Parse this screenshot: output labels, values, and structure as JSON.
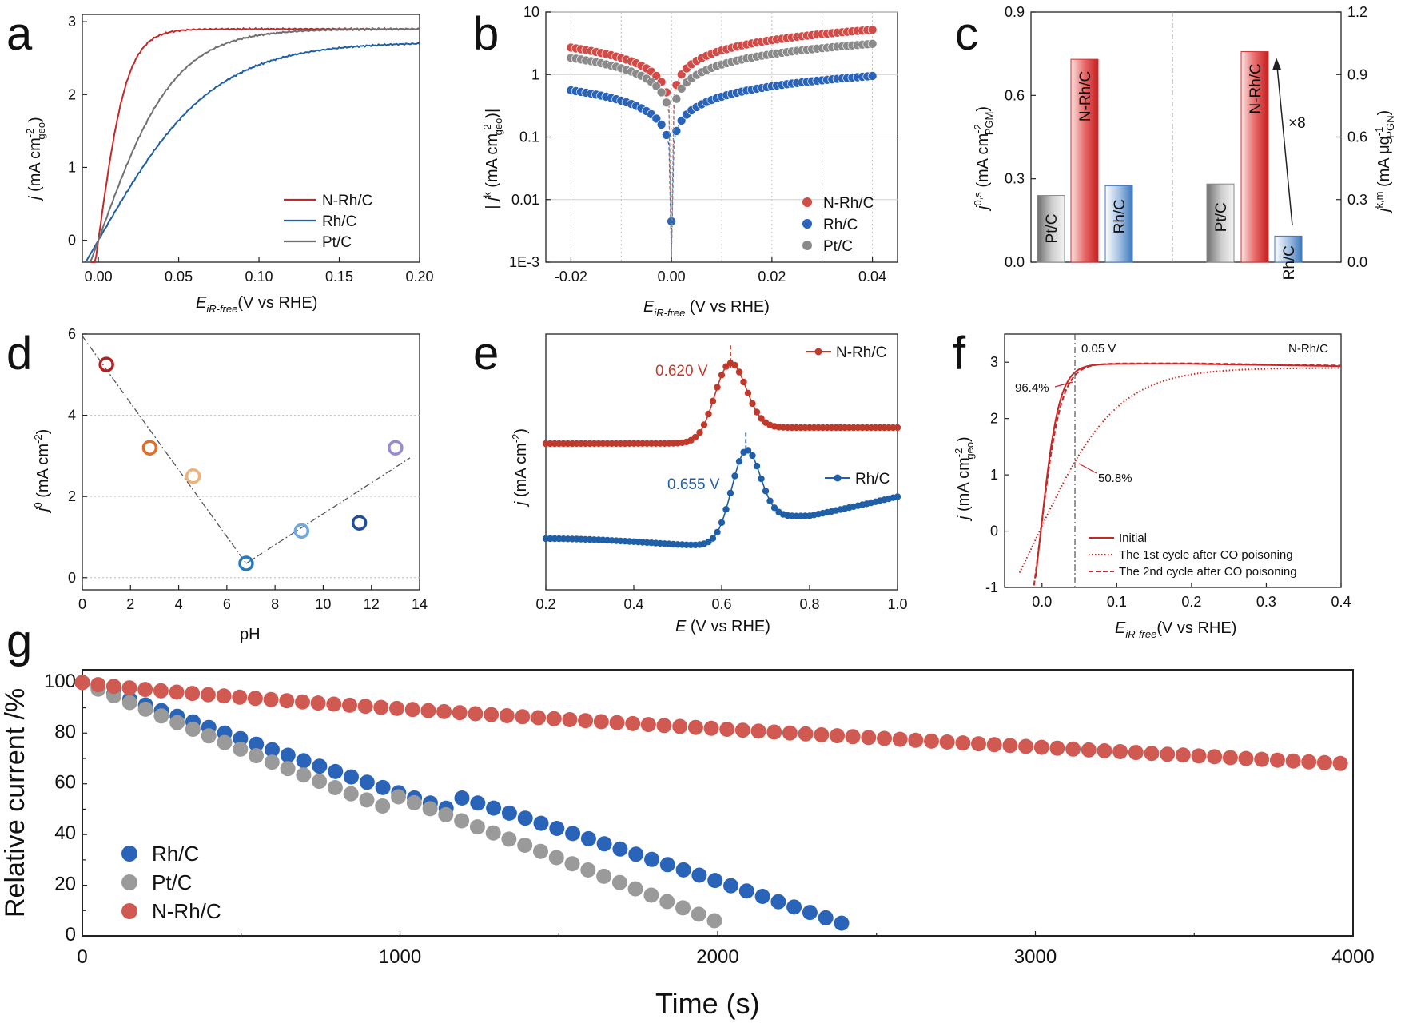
{
  "panels": {
    "a": {
      "letter": "a",
      "chart_data": {
        "type": "line",
        "ylabel": "j (mA cm-2geo)",
        "ylabel_parts": {
          "sym": "j",
          "main": " (mA cm",
          "sup": "-2",
          "sub": "geo",
          "end": ")"
        },
        "xlabel_parts": {
          "sym": "E",
          "sub": "iR-free",
          "end": "(V vs RHE)"
        },
        "xlim": [
          -0.01,
          0.2
        ],
        "ylim": [
          -0.3,
          3.1
        ],
        "xticks": [
          "0.00",
          "0.05",
          "0.10",
          "0.15",
          "0.20"
        ],
        "yticks": [
          "0",
          "1",
          "2",
          "3"
        ],
        "legend_position": "bottom-right",
        "series": [
          {
            "name": "N-Rh/C",
            "color": "#c62828",
            "jmax": 2.9,
            "k": 55
          },
          {
            "name": "Rh/C",
            "color": "#1f5fa8",
            "jmax": 2.72,
            "k": 14
          },
          {
            "name": "Pt/C",
            "color": "#707070",
            "jmax": 2.9,
            "k": 21
          }
        ]
      }
    },
    "b": {
      "letter": "b",
      "chart_data": {
        "type": "scatter",
        "yscale": "log",
        "ylabel_parts": {
          "main": "| j",
          "sup": "k",
          "mid": " (mA cm",
          "sup2": "-2",
          "sub": "geo",
          "end": ")|"
        },
        "xlabel_parts": {
          "sym": "E",
          "sub": "iR-free",
          "end": " (V vs RHE)"
        },
        "xlim": [
          -0.025,
          0.045
        ],
        "ylim": [
          0.001,
          10
        ],
        "xticks": [
          "-0.02",
          "0.00",
          "0.02",
          "0.04"
        ],
        "yticks": [
          "1E-3",
          "0.01",
          "0.1",
          "1",
          "10"
        ],
        "legend_position": "bottom-right",
        "series": [
          {
            "name": "N-Rh/C",
            "color": "#d24b46",
            "j_neg": 2.7,
            "j_pos": 5.2
          },
          {
            "name": "Rh/C",
            "color": "#2a64b8",
            "j_neg": 0.56,
            "j_pos": 0.95
          },
          {
            "name": "Pt/C",
            "color": "#8a8a8a",
            "j_neg": 1.85,
            "j_pos": 3.1
          }
        ]
      }
    },
    "c": {
      "letter": "c",
      "chart_data": {
        "type": "bar",
        "ylabel_left_parts": {
          "main": "j",
          "sup": "0,s",
          "mid": " (mA cm",
          "sup2": "-2",
          "sub": "PGM",
          "end": ")"
        },
        "ylabel_right_parts": {
          "main": "j",
          "sup": "k,m",
          "mid": " (mA μg",
          "sup2": "-1",
          "sub": "PGN",
          "end": ")"
        },
        "ylim_left": [
          0,
          0.9
        ],
        "ylim_right": [
          0,
          1.2
        ],
        "yticks_left": [
          "0.0",
          "0.3",
          "0.6",
          "0.9"
        ],
        "yticks_right": [
          "0.0",
          "0.3",
          "0.6",
          "0.9",
          "1.2"
        ],
        "annotation": "×8",
        "groups": [
          {
            "axis": "left",
            "bars": [
              {
                "label": "Pt/C",
                "value": 0.24,
                "color": "#8a8a8a"
              },
              {
                "label": "N-Rh/C",
                "value": 0.73,
                "color": "#d03030"
              },
              {
                "label": "Rh/C",
                "value": 0.275,
                "color": "#3f78bd"
              }
            ]
          },
          {
            "axis": "right",
            "bars": [
              {
                "label": "Pt/C",
                "value": 0.375,
                "color": "#8a8a8a"
              },
              {
                "label": "N-Rh/C",
                "value": 1.01,
                "color": "#d03030"
              },
              {
                "label": "Rh/C",
                "value": 0.125,
                "color": "#3f78bd"
              }
            ]
          }
        ]
      }
    },
    "d": {
      "letter": "d",
      "chart_data": {
        "type": "scatter",
        "xlabel": "pH",
        "ylabel_parts": {
          "main": "j",
          "sup": "0",
          "mid": " (mA cm",
          "sup2": "-2",
          "end": ")"
        },
        "xlim": [
          0,
          14
        ],
        "ylim": [
          -0.3,
          6
        ],
        "xticks": [
          "0",
          "2",
          "4",
          "6",
          "8",
          "10",
          "12",
          "14"
        ],
        "yticks": [
          "0",
          "2",
          "4",
          "6"
        ],
        "points": [
          {
            "x": 1.0,
            "y": 5.25,
            "color": "#b22222"
          },
          {
            "x": 2.8,
            "y": 3.2,
            "color": "#e06b2a"
          },
          {
            "x": 4.6,
            "y": 2.5,
            "color": "#f0b27a"
          },
          {
            "x": 6.8,
            "y": 0.35,
            "color": "#2a7ab8"
          },
          {
            "x": 9.1,
            "y": 1.15,
            "color": "#6fa8dc"
          },
          {
            "x": 11.5,
            "y": 1.35,
            "color": "#1f4e9a"
          },
          {
            "x": 13.0,
            "y": 3.2,
            "color": "#9b8ad8"
          }
        ],
        "fit_lines": [
          {
            "x": [
              0,
              6.8
            ],
            "y": [
              5.95,
              0.35
            ]
          },
          {
            "x": [
              6.8,
              13.6
            ],
            "y": [
              0.35,
              2.95
            ]
          }
        ]
      }
    },
    "e": {
      "letter": "e",
      "chart_data": {
        "type": "line",
        "xlabel_parts": {
          "sym": "E",
          "end": " (V vs RHE)"
        },
        "ylabel_parts": {
          "main": "j",
          "mid": " (mA cm",
          "sup2": "-2",
          "end": ")"
        },
        "xlim": [
          0.2,
          1.0
        ],
        "xticks": [
          "0.2",
          "0.4",
          "0.6",
          "0.8",
          "1.0"
        ],
        "series": [
          {
            "name": "N-Rh/C",
            "color": "#c0392b",
            "peak_x": 0.62,
            "peak_label": "0.620 V"
          },
          {
            "name": "Rh/C",
            "color": "#1f5fa8",
            "peak_x": 0.655,
            "peak_label": "0.655 V"
          }
        ]
      }
    },
    "f": {
      "letter": "f",
      "chart_data": {
        "type": "line",
        "xlabel_parts": {
          "sym": "E",
          "sub": "iR-free",
          "end": "(V vs RHE)"
        },
        "ylabel_parts": {
          "main": "j",
          "mid": " (mA cm",
          "sup2": "-2",
          "sub": "geo",
          "end": ")"
        },
        "xlim": [
          -0.05,
          0.4
        ],
        "ylim": [
          -1,
          3.5
        ],
        "xticks": [
          "0.0",
          "0.1",
          "0.2",
          "0.3",
          "0.4"
        ],
        "yticks": [
          "-1",
          "0",
          "1",
          "2",
          "3"
        ],
        "vline_label": "0.05 V",
        "corner_label": "N-Rh/C",
        "annotations": [
          "96.4%",
          "50.8%"
        ],
        "series": [
          {
            "name": "Initial",
            "style": "solid"
          },
          {
            "name": "The 1st cycle after CO poisoning",
            "style": "dotted"
          },
          {
            "name": "The 2nd cycle after CO poisoning",
            "style": "dashed"
          }
        ]
      }
    },
    "g": {
      "letter": "g",
      "chart_data": {
        "type": "scatter",
        "xlabel": "Time (s)",
        "ylabel": "Relative current /%",
        "xlim": [
          0,
          4000
        ],
        "ylim": [
          0,
          105
        ],
        "xticks": [
          "0",
          "1000",
          "2000",
          "3000",
          "4000"
        ],
        "yticks": [
          "0",
          "20",
          "40",
          "60",
          "80",
          "100"
        ],
        "legend_position": "bottom-left",
        "series": [
          {
            "name": "Rh/C",
            "color": "#2a64b8",
            "x_end": 2390,
            "y_end": 5
          },
          {
            "name": "Pt/C",
            "color": "#9a9a9a",
            "x_end": 1990,
            "y_end": 6
          },
          {
            "name": "N-Rh/C",
            "color": "#d05a52",
            "x_end": 3960,
            "y_end": 68
          }
        ]
      }
    }
  }
}
